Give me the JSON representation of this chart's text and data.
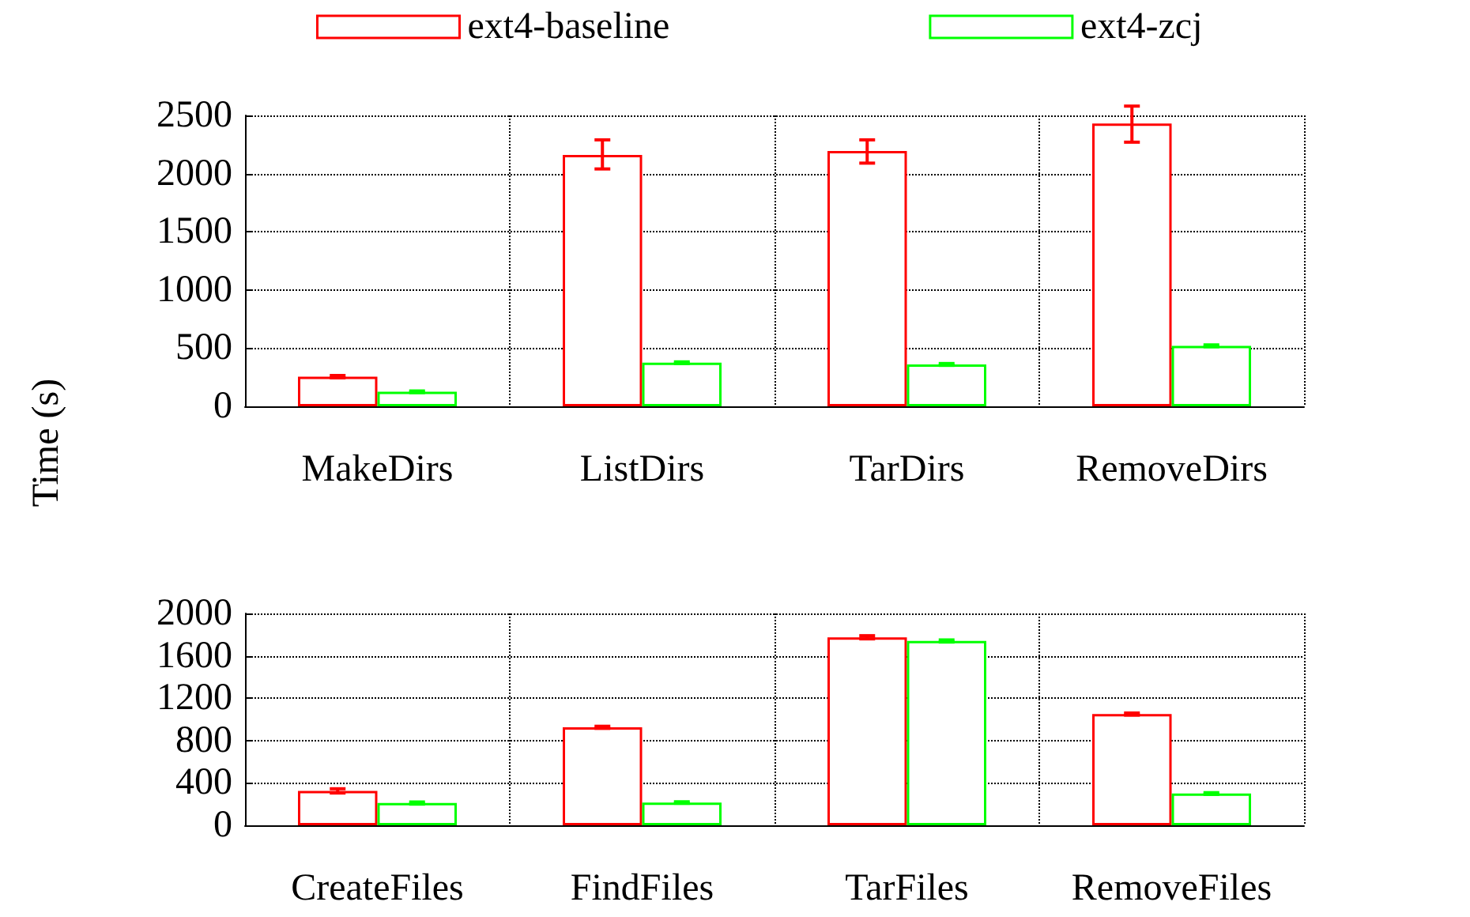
{
  "chart_data": [
    {
      "type": "bar",
      "ylabel": "Time (s)",
      "categories": [
        "MakeDirs",
        "ListDirs",
        "TarDirs",
        "RemoveDirs"
      ],
      "series": [
        {
          "name": "ext4-baseline",
          "color": "#ff0000",
          "values": [
            255,
            2160,
            2195,
            2430
          ],
          "errors": [
            [
              245,
              265
            ],
            [
              2040,
              2290
            ],
            [
              2090,
              2290
            ],
            [
              2270,
              2580
            ]
          ]
        },
        {
          "name": "ext4-zcj",
          "color": "#00ff00",
          "values": [
            125,
            375,
            360,
            520
          ],
          "errors": [
            [
              118,
              132
            ],
            [
              368,
              382
            ],
            [
              352,
              368
            ],
            [
              512,
              528
            ]
          ]
        }
      ],
      "ylim": [
        0,
        2500
      ],
      "yticks": [
        0,
        500,
        1000,
        1500,
        2000,
        2500
      ],
      "grid": true,
      "legend": "top"
    },
    {
      "type": "bar",
      "categories": [
        "CreateFiles",
        "FindFiles",
        "TarFiles",
        "RemoveFiles"
      ],
      "series": [
        {
          "color": "#ff0000",
          "values": [
            325,
            925,
            1775,
            1050
          ],
          "errors": [
            [
              305,
              345
            ],
            [
              915,
              935
            ],
            [
              1760,
              1790
            ],
            [
              1040,
              1060
            ]
          ]
        },
        {
          "color": "#00ff00",
          "values": [
            210,
            215,
            1740,
            300
          ],
          "errors": [
            [
              200,
              220
            ],
            [
              208,
              222
            ],
            [
              1730,
              1750
            ],
            [
              292,
              308
            ]
          ]
        }
      ],
      "ylim": [
        0,
        2000
      ],
      "yticks": [
        0,
        400,
        800,
        1200,
        1600,
        2000
      ],
      "grid": true,
      "legend": false
    }
  ]
}
